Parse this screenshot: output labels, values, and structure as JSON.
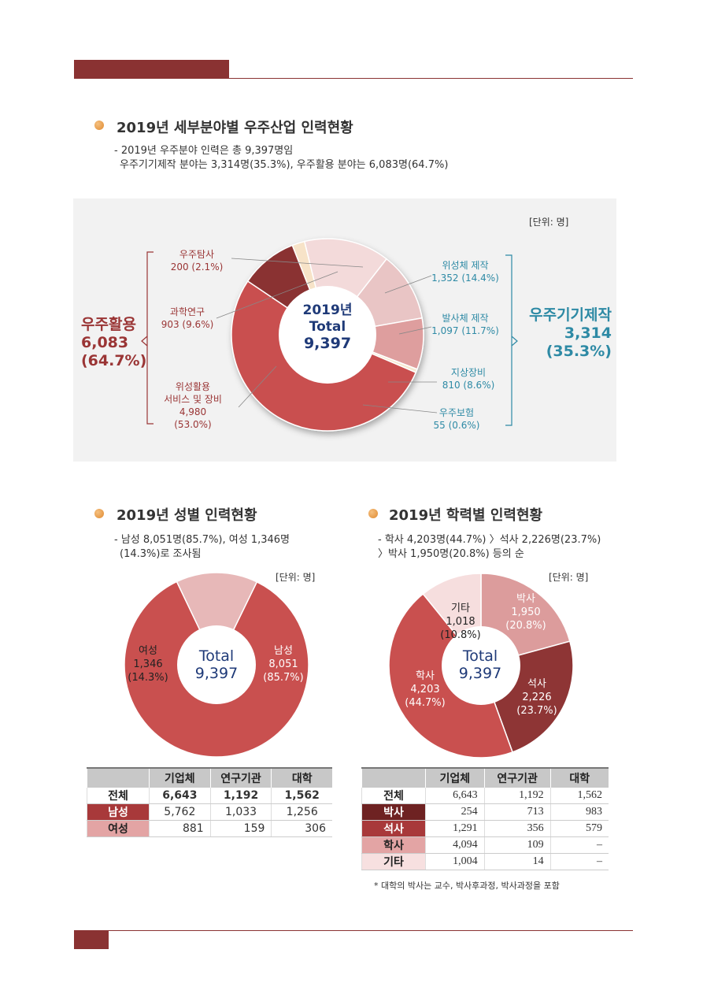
{
  "colors": {
    "accent": "#8a3232",
    "teal": "#2e8aa5",
    "navy": "#1f3a78"
  },
  "section1": {
    "title": "2019년 세부분야별 우주산업 인력현황",
    "desc_line1": "- 2019년 우주분야 인력은 총 9,397명임",
    "desc_line2": "우주기기제작 분야는 3,314명(35.3%), 우주활용 분야는 6,083명(64.7%)",
    "unit": "[단위: 명]",
    "center": {
      "year": "2019년",
      "total_label": "Total",
      "total": "9,397"
    },
    "group_left": {
      "name": "우주활용",
      "value": "6,083",
      "pct": "(64.7%)"
    },
    "group_right": {
      "name": "우주기기제작",
      "value": "3,314",
      "pct": "(35.3%)"
    },
    "labels": {
      "exploration": {
        "name": "우주탐사",
        "value": "200 (2.1%)"
      },
      "science": {
        "name": "과학연구",
        "value": "903 (9.6%)"
      },
      "satellite_use": {
        "name1": "위성활용",
        "name2": "서비스 및 장비",
        "value": "4,980",
        "pct": "(53.0%)"
      },
      "satellite_mfg": {
        "name": "위성체 제작",
        "value": "1,352 (14.4%)"
      },
      "launcher": {
        "name": "발사체 제작",
        "value": "1,097 (11.7%)"
      },
      "ground": {
        "name": "지상장비",
        "value": "810 (8.6%)"
      },
      "insurance": {
        "name": "우주보험",
        "value": "55 (0.6%)"
      }
    }
  },
  "chart_data": [
    {
      "type": "pie",
      "title": "2019년 세부분야별 우주산업 인력현황",
      "categories": [
        "우주탐사",
        "위성체 제작",
        "발사체 제작",
        "지상장비",
        "우주보험",
        "위성활용 서비스 및 장비",
        "과학연구"
      ],
      "values": [
        200,
        1352,
        1097,
        810,
        55,
        4980,
        903
      ],
      "percent": [
        2.1,
        14.4,
        11.7,
        8.6,
        0.6,
        53.0,
        9.6
      ],
      "colors": [
        "#f7e3c8",
        "#f3dada",
        "#e9c5c5",
        "#de9e9e",
        "#f6ead2",
        "#c9504f",
        "#8a3232"
      ]
    },
    {
      "type": "pie",
      "title": "2019년 성별 인력현황",
      "categories": [
        "남성",
        "여성"
      ],
      "values": [
        8051,
        1346
      ],
      "percent": [
        85.7,
        14.3
      ],
      "colors": [
        "#c9504f",
        "#e7b8b8"
      ]
    },
    {
      "type": "pie",
      "title": "2019년 학력별 인력현황",
      "categories": [
        "박사",
        "석사",
        "학사",
        "기타"
      ],
      "values": [
        1950,
        2226,
        4203,
        1018
      ],
      "percent": [
        20.8,
        23.7,
        44.7,
        10.8
      ],
      "colors": [
        "#dc9c9c",
        "#8e3535",
        "#c9504f",
        "#f6dede"
      ]
    }
  ],
  "section2": {
    "title": "2019년 성별 인력현황",
    "desc_line1": "- 남성 8,051명(85.7%), 여성 1,346명",
    "desc_line2": "(14.3%)로 조사됨",
    "unit": "[단위: 명]",
    "center": {
      "total_label": "Total",
      "total": "9,397"
    },
    "male": {
      "name": "남성",
      "value": "8,051",
      "pct": "(85.7%)"
    },
    "female": {
      "name": "여성",
      "value": "1,346",
      "pct": "(14.3%)"
    },
    "table": {
      "headers": [
        "",
        "기업체",
        "연구기관",
        "대학"
      ],
      "rows": [
        {
          "label": "전체",
          "values": [
            "6,643",
            "1,192",
            "1,562"
          ]
        },
        {
          "label": "남성",
          "values": [
            "5,762",
            "1,033",
            "1,256"
          ]
        },
        {
          "label": "여성",
          "values": [
            "881",
            "159",
            "306"
          ]
        }
      ]
    }
  },
  "section3": {
    "title": "2019년 학력별 인력현황",
    "desc_line1": "- 학사 4,203명(44.7%) 〉석사 2,226명(23.7%)",
    "desc_line2": "〉박사 1,950명(20.8%) 등의 순",
    "unit": "[단위: 명]",
    "center": {
      "total_label": "Total",
      "total": "9,397"
    },
    "phd": {
      "name": "박사",
      "value": "1,950",
      "pct": "(20.8%)"
    },
    "master": {
      "name": "석사",
      "value": "2,226",
      "pct": "(23.7%)"
    },
    "bachelor": {
      "name": "학사",
      "value": "4,203",
      "pct": "(44.7%)"
    },
    "other": {
      "name": "기타",
      "value": "1,018",
      "pct": "(10.8%)"
    },
    "table": {
      "headers": [
        "",
        "기업체",
        "연구기관",
        "대학"
      ],
      "rows": [
        {
          "label": "전체",
          "values": [
            "6,643",
            "1,192",
            "1,562"
          ]
        },
        {
          "label": "박사",
          "values": [
            "254",
            "713",
            "983"
          ]
        },
        {
          "label": "석사",
          "values": [
            "1,291",
            "356",
            "579"
          ]
        },
        {
          "label": "학사",
          "values": [
            "4,094",
            "109",
            "–"
          ]
        },
        {
          "label": "기타",
          "values": [
            "1,004",
            "14",
            "–"
          ]
        }
      ]
    },
    "note": "* 대학의 박사는 교수, 박사후과정, 박사과정을 포함"
  }
}
